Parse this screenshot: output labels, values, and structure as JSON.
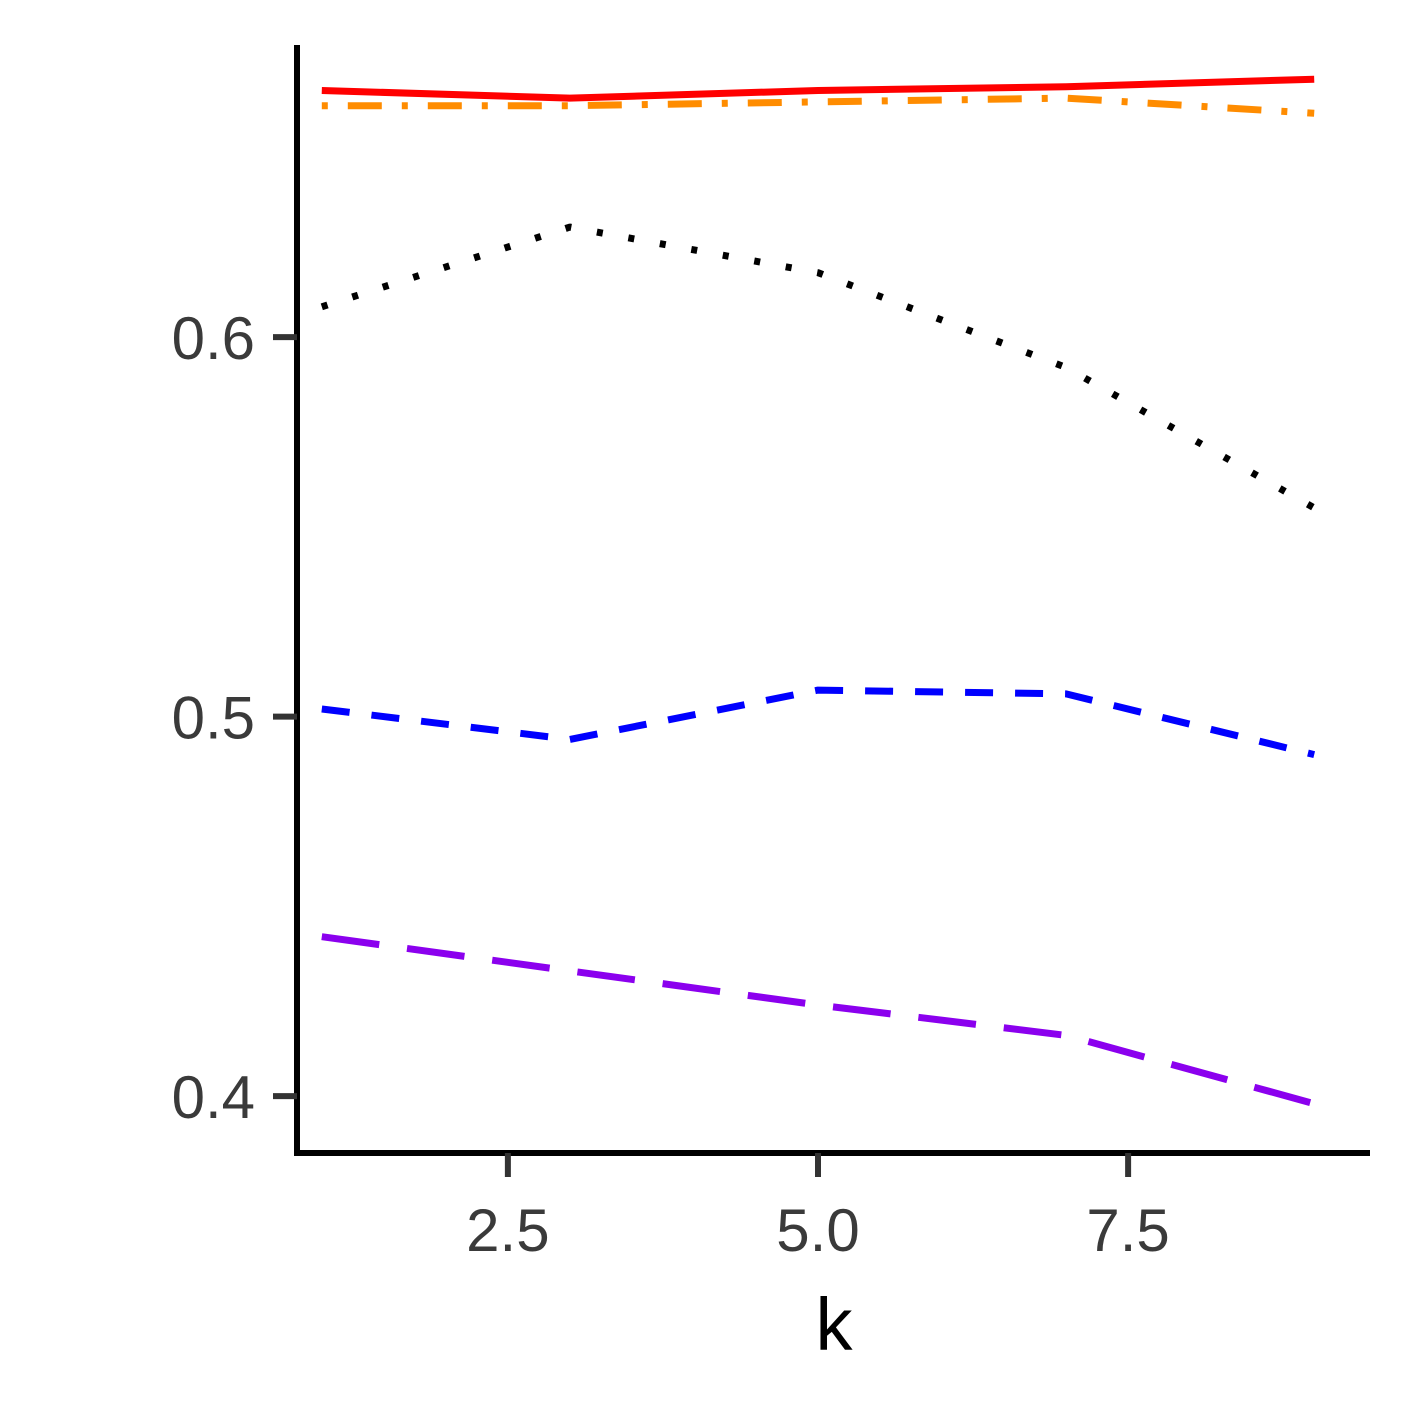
{
  "chart_data": {
    "type": "line",
    "title": "",
    "xlabel": "k",
    "ylabel": "",
    "x": [
      1,
      3,
      5,
      7,
      9
    ],
    "xlim": [
      0.8,
      9.45
    ],
    "ylim": [
      0.385,
      0.677
    ],
    "xticks": [
      2.5,
      5.0,
      7.5
    ],
    "xtick_labels": [
      "2.5",
      "5.0",
      "7.5"
    ],
    "yticks": [
      0.4,
      0.5,
      0.6
    ],
    "ytick_labels": [
      "0.4",
      "0.5",
      "0.6"
    ],
    "grid": false,
    "legend": "none",
    "series": [
      {
        "color": "#ff0000",
        "dash": "solid",
        "values": [
          0.665,
          0.663,
          0.665,
          0.666,
          0.668
        ]
      },
      {
        "color": "#ff8c00",
        "dash": "dotdash",
        "values": [
          0.661,
          0.661,
          0.662,
          0.663,
          0.659
        ]
      },
      {
        "color": "#000000",
        "dash": "dotted",
        "values": [
          0.608,
          0.629,
          0.617,
          0.592,
          0.555
        ]
      },
      {
        "color": "#0000ff",
        "dash": "dashed",
        "values": [
          0.502,
          0.494,
          0.507,
          0.506,
          0.49
        ]
      },
      {
        "color": "#8b00ee",
        "dash": "longdash",
        "values": [
          0.442,
          0.433,
          0.424,
          0.416,
          0.398
        ]
      }
    ]
  }
}
